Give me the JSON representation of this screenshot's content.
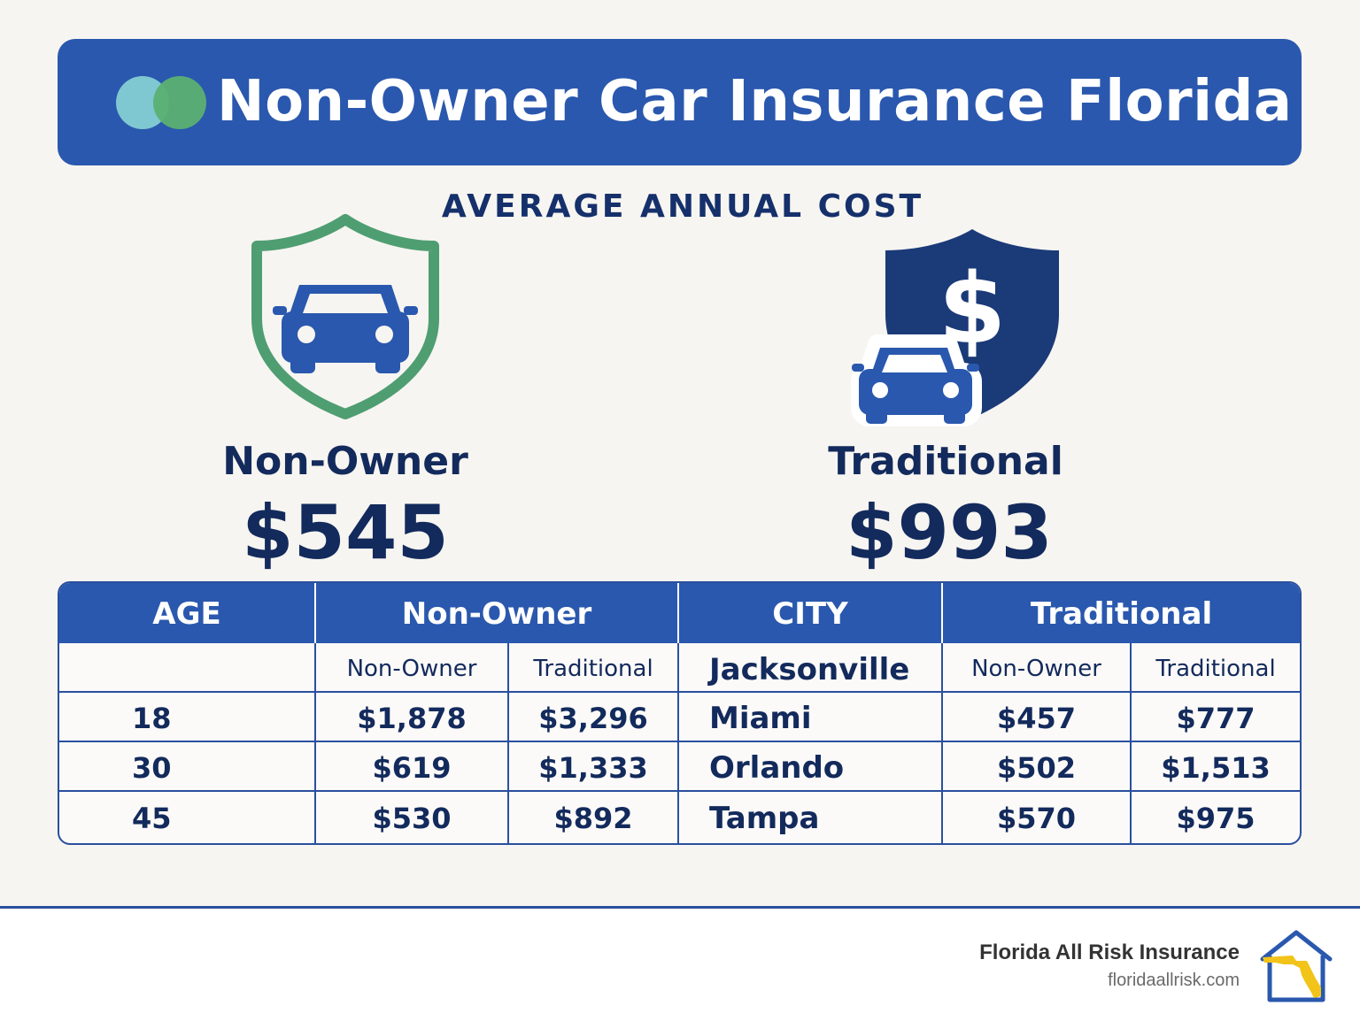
{
  "header": {
    "title": "Non-Owner Car Insurance Florida",
    "logo_icon": "two-circles-logo-icon",
    "colors": {
      "banner": "#2a58ae",
      "dot_teal": "#7fc8d2",
      "dot_green": "#5bb072"
    }
  },
  "subtitle": "AVERAGE ANNUAL COST",
  "comparison": {
    "non_owner": {
      "label": "Non-Owner",
      "value": "$545",
      "icon": "shield-car-icon",
      "shield_color": "#4f9e72"
    },
    "traditional": {
      "label": "Traditional",
      "value": "$993",
      "icon": "shield-dollar-car-icon",
      "shield_color": "#1b3a78"
    }
  },
  "table": {
    "headers": [
      "AGE",
      "Non-Owner",
      "CITY",
      "Traditional"
    ],
    "subheaders": {
      "age": "",
      "age_non_owner": "Non-Owner",
      "age_traditional": "Traditional",
      "city": "Jacksonville",
      "city_non_owner": "Non-Owner",
      "city_traditional": "Traditional"
    },
    "rows": [
      {
        "age": "18",
        "age_non_owner": "$1,878",
        "age_traditional": "$3,296",
        "city": "Miami",
        "city_non_owner": "$457",
        "city_traditional": "$777"
      },
      {
        "age": "30",
        "age_non_owner": "$619",
        "age_traditional": "$1,333",
        "city": "Orlando",
        "city_non_owner": "$502",
        "city_traditional": "$1,513"
      },
      {
        "age": "45",
        "age_non_owner": "$530",
        "age_traditional": "$892",
        "city": "Tampa",
        "city_non_owner": "$570",
        "city_traditional": "$975"
      }
    ]
  },
  "footer": {
    "brand_name": "Florida All Risk Insurance",
    "brand_url": "floridaallrisk.com",
    "logo_icon": "house-florida-logo-icon"
  }
}
